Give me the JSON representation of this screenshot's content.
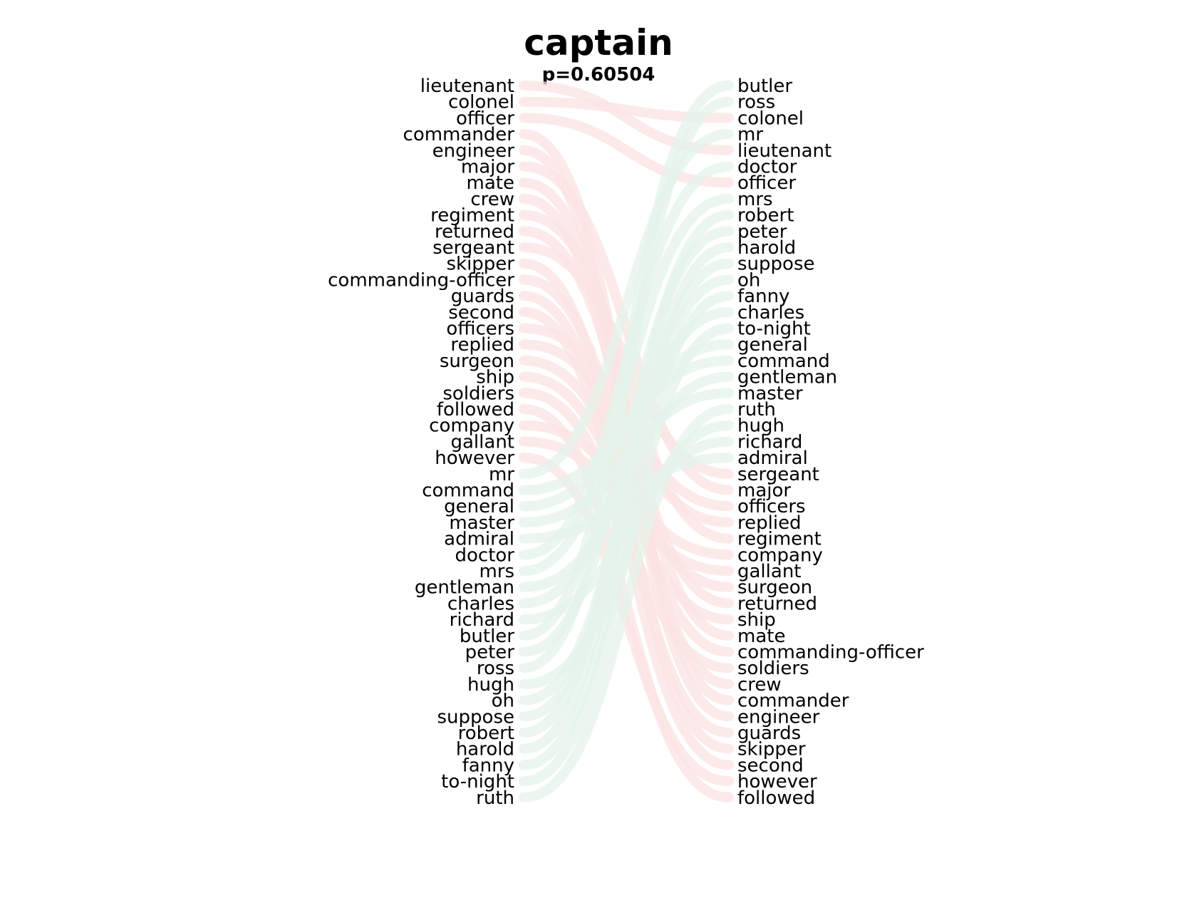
{
  "chart_data": {
    "type": "bump",
    "title": "captain",
    "subtitle": "p=0.60504",
    "left_terms": [
      "lieutenant",
      "colonel",
      "officer",
      "commander",
      "engineer",
      "major",
      "mate",
      "crew",
      "regiment",
      "returned",
      "sergeant",
      "skipper",
      "commanding-officer",
      "guards",
      "second",
      "officers",
      "replied",
      "surgeon",
      "ship",
      "soldiers",
      "followed",
      "company",
      "gallant",
      "however",
      "mr",
      "command",
      "general",
      "master",
      "admiral",
      "doctor",
      "mrs",
      "gentleman",
      "charles",
      "richard",
      "butler",
      "peter",
      "ross",
      "hugh",
      "oh",
      "suppose",
      "robert",
      "harold",
      "fanny",
      "to-night",
      "ruth"
    ],
    "right_terms": [
      "butler",
      "ross",
      "colonel",
      "mr",
      "lieutenant",
      "doctor",
      "officer",
      "mrs",
      "robert",
      "peter",
      "harold",
      "suppose",
      "oh",
      "fanny",
      "charles",
      "to-night",
      "general",
      "command",
      "gentleman",
      "master",
      "ruth",
      "hugh",
      "richard",
      "admiral",
      "sergeant",
      "major",
      "officers",
      "replied",
      "regiment",
      "company",
      "gallant",
      "surgeon",
      "returned",
      "ship",
      "mate",
      "commanding-officer",
      "soldiers",
      "crew",
      "commander",
      "engineer",
      "guards",
      "skipper",
      "second",
      "however",
      "followed"
    ],
    "colors": {
      "falling": "#fbe3e3",
      "rising": "#e4f3ea",
      "middle": "#fdfbe1"
    }
  }
}
